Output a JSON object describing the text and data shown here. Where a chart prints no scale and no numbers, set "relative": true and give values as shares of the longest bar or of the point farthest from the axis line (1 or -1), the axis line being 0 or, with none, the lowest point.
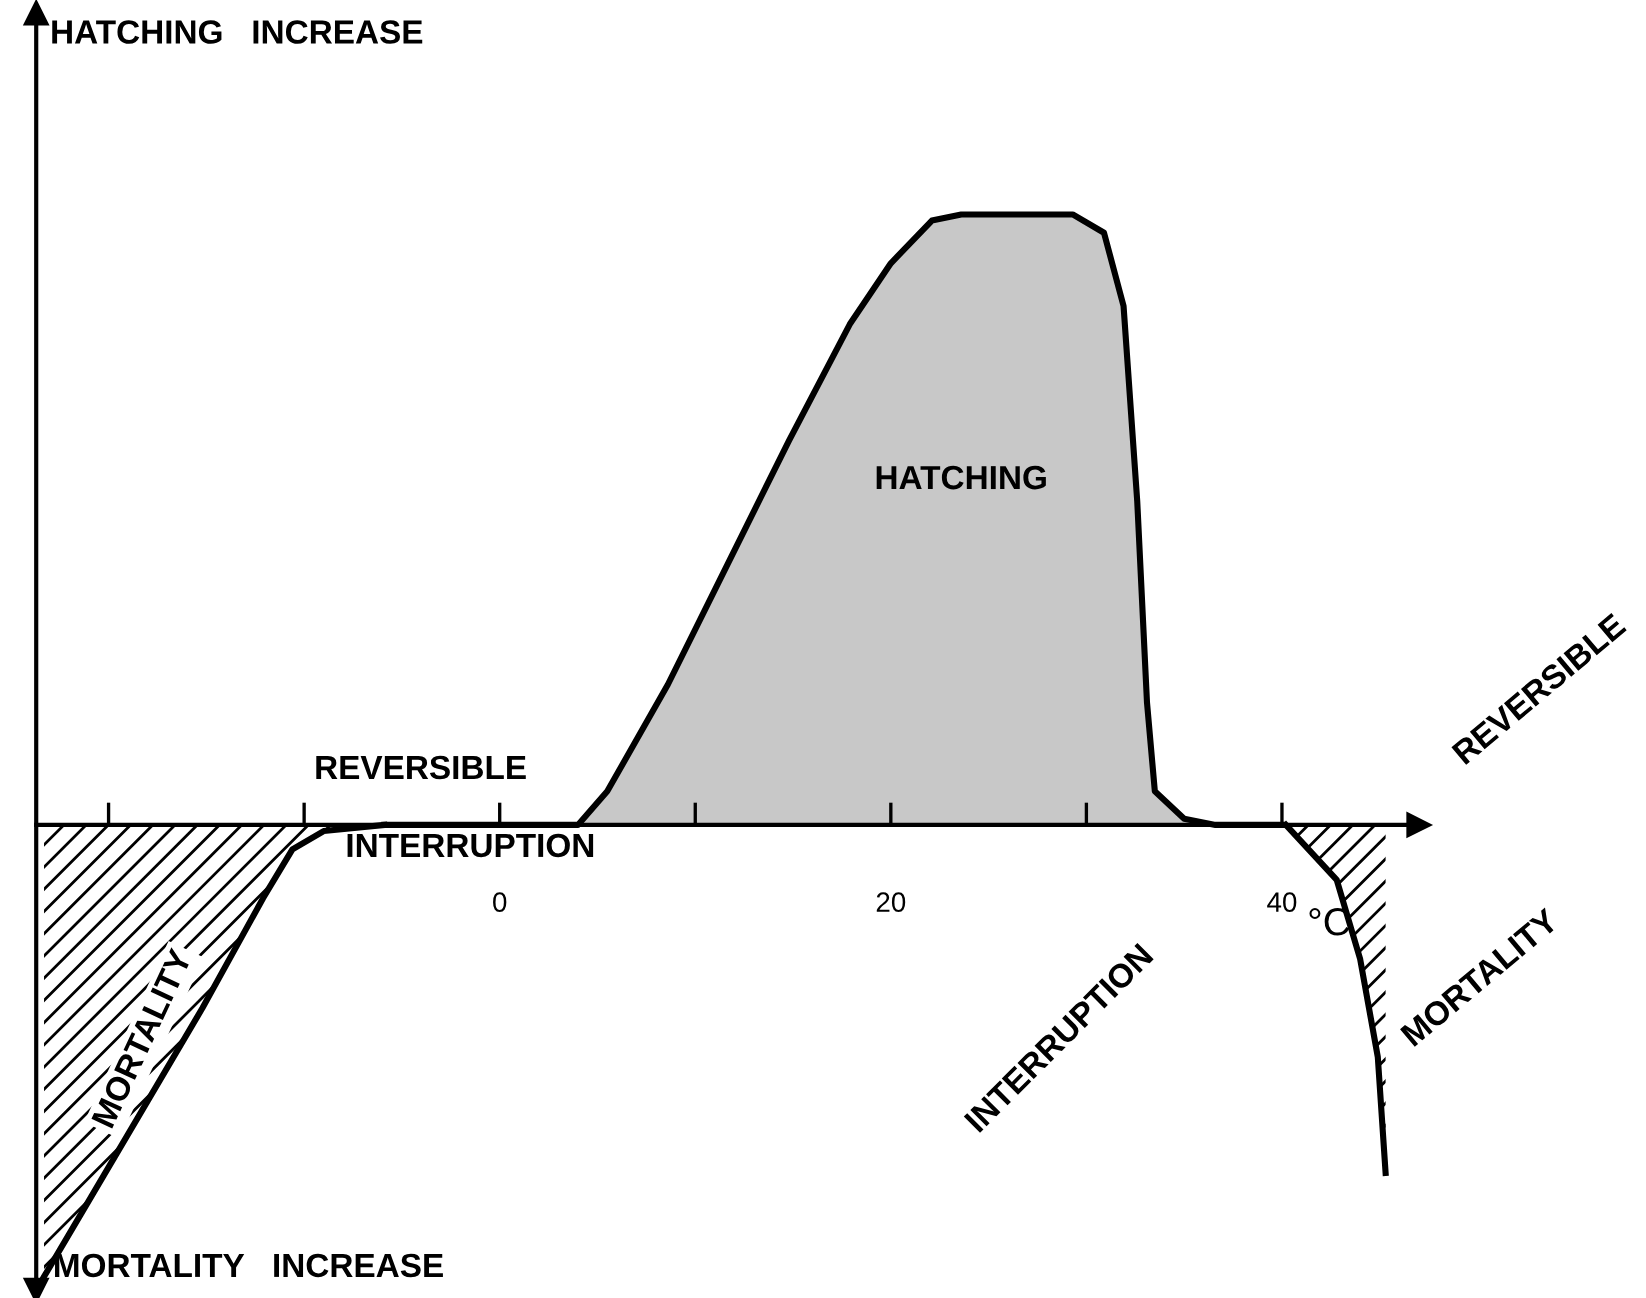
{
  "chart_data": {
    "type": "area",
    "relative": true,
    "tick_labels": "x",
    "grid": false,
    "legend": false,
    "xlabel": "°C",
    "xlim": [
      -23.7,
      47
    ],
    "xticks": [
      {
        "value": -20,
        "label": null
      },
      {
        "value": -10,
        "label": null
      },
      0,
      {
        "value": 10,
        "label": null
      },
      20,
      {
        "value": 30,
        "label": null
      },
      40
    ],
    "series": [
      {
        "color": "#000000",
        "x": [
          -23.3,
          -19.8,
          -15.2,
          -12.1,
          -10.6,
          -9,
          -5.9
        ],
        "values": [
          -0.74,
          -0.55,
          -0.3,
          -0.12,
          -0.04,
          -0.01,
          0
        ]
      },
      {
        "color": "#c8c8c8",
        "x": [
          -5.9,
          4,
          5.5,
          8.6,
          11.7,
          14.8,
          17.9,
          20,
          22.1,
          23.6,
          29.3,
          30.9,
          31.9,
          32.6,
          33.1,
          33.5,
          35,
          36.6,
          40
        ],
        "values": [
          0,
          0,
          0.055,
          0.23,
          0.43,
          0.63,
          0.82,
          0.92,
          0.99,
          1,
          1,
          0.97,
          0.85,
          0.53,
          0.2,
          0.055,
          0.01,
          0,
          0
        ]
      },
      {
        "color": "#000000",
        "x": [
          40.2,
          42.8,
          44,
          44.9,
          45.3
        ],
        "values": [
          0,
          -0.09,
          -0.22,
          -0.38,
          -0.57
        ]
      }
    ],
    "annotations": [
      "HATCHING   INCREASE",
      "HATCHING",
      "REVERSIBLE",
      "INTERRUPTION",
      "REVERSIBLE",
      "INTERRUPTION",
      "MORTALITY",
      "MORTALITY",
      "MORTALITY   INCREASE"
    ]
  }
}
